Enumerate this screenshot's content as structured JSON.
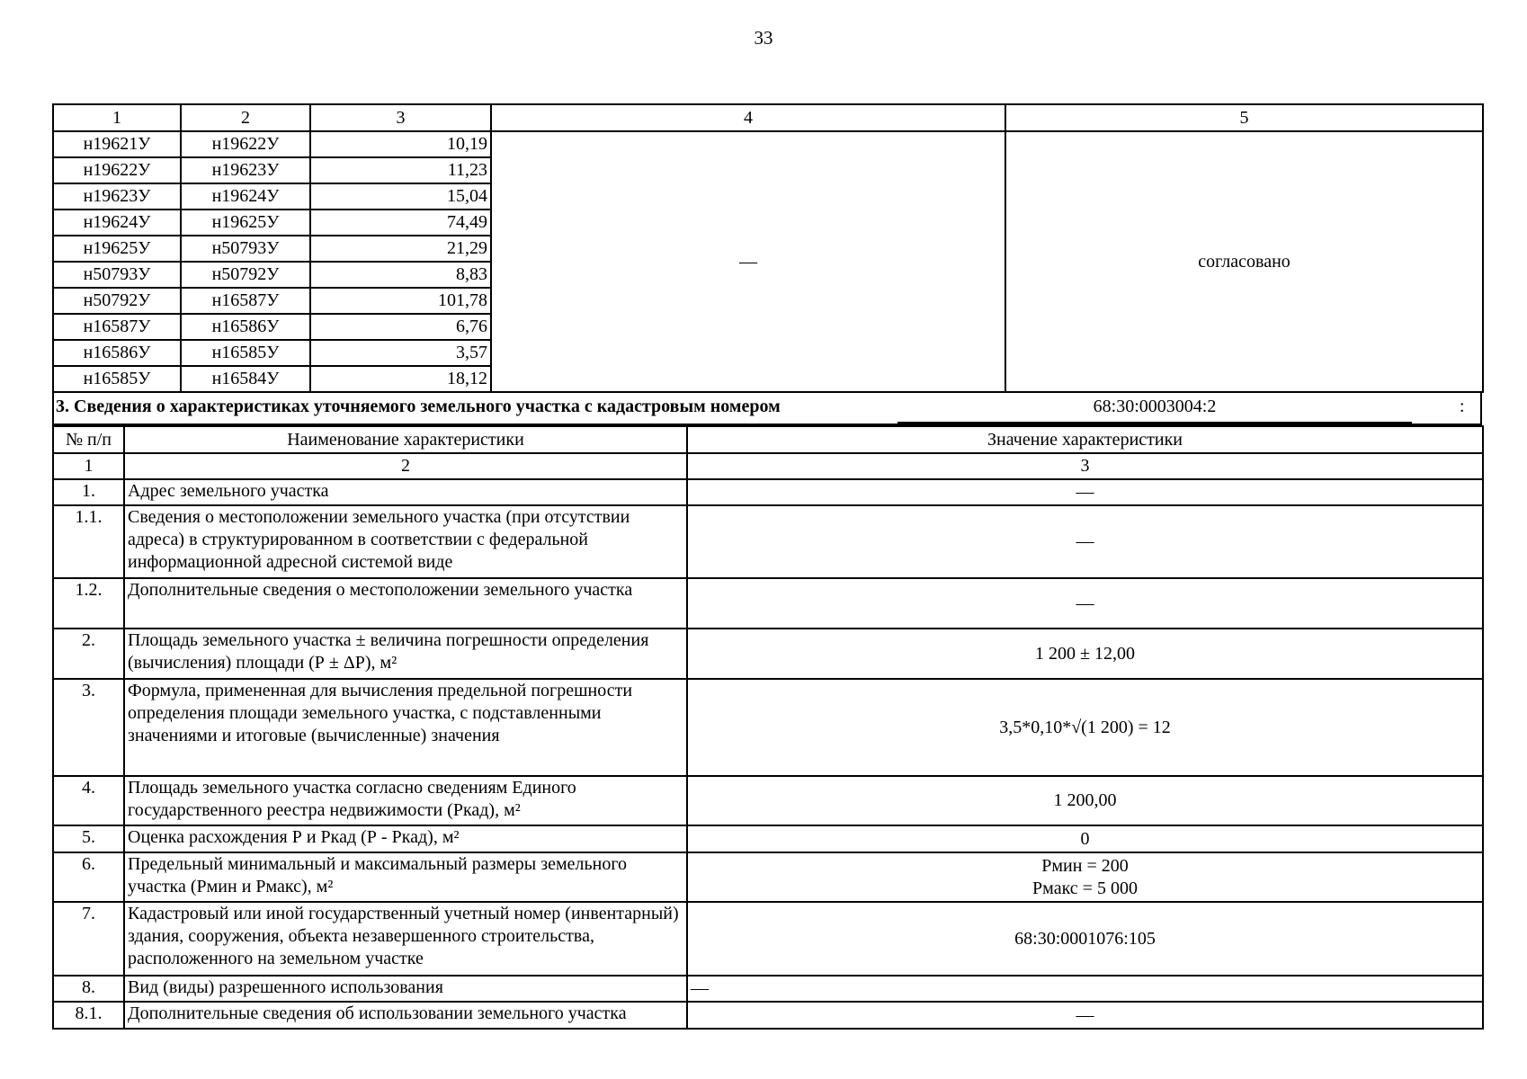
{
  "page_number": "33",
  "boundary_table": {
    "headers": [
      "1",
      "2",
      "3",
      "4",
      "5"
    ],
    "rows": [
      [
        "н19621У",
        "н19622У",
        "10,19"
      ],
      [
        "н19622У",
        "н19623У",
        "11,23"
      ],
      [
        "н19623У",
        "н19624У",
        "15,04"
      ],
      [
        "н19624У",
        "н19625У",
        "74,49"
      ],
      [
        "н19625У",
        "н50793У",
        "21,29"
      ],
      [
        "н50793У",
        "н50792У",
        "8,83"
      ],
      [
        "н50792У",
        "н16587У",
        "101,78"
      ],
      [
        "н16587У",
        "н16586У",
        "6,76"
      ],
      [
        "н16586У",
        "н16585У",
        "3,57"
      ],
      [
        "н16585У",
        "н16584У",
        "18,12"
      ]
    ],
    "col4_value": "—",
    "col5_value": "согласовано"
  },
  "section3": {
    "title": "3. Сведения о характеристиках уточняемого земельного участка с кадастровым номером",
    "cadastral_number": "68:30:0003004:2",
    "colon": ":"
  },
  "characteristics_table": {
    "headers": [
      "№ п/п",
      "Наименование характеристики",
      "Значение характеристики"
    ],
    "index_row": [
      "1",
      "2",
      "3"
    ],
    "rows": [
      {
        "num": "1.",
        "name": "Адрес земельного участка",
        "value": "—"
      },
      {
        "num": "1.1.",
        "name": "Сведения о местоположении земельного участка (при отсутствии адреса) в структурированном в соответствии с федеральной информационной адресной системой виде",
        "value": "—"
      },
      {
        "num": "1.2.",
        "name": "Дополнительные сведения о местоположении земельного участка",
        "value": "—"
      },
      {
        "num": "2.",
        "name": "Площадь земельного участка ± величина погрешности определения (вычисления) площади (Р ± ΔР), м²",
        "value": "1 200 ± 12,00"
      },
      {
        "num": "3.",
        "name": "Формула, примененная для вычисления предельной погрешности определения площади земельного участка, с подставленными значениями и итоговые (вычисленные) значения",
        "value": "3,5*0,10*√(1 200) = 12"
      },
      {
        "num": "4.",
        "name": "Площадь земельного участка согласно сведениям Единого государственного реестра недвижимости (Ркад), м²",
        "value": "1 200,00"
      },
      {
        "num": "5.",
        "name": "Оценка расхождения Р и Ркад (Р - Ркад), м²",
        "value": "0"
      },
      {
        "num": "6.",
        "name": "Предельный минимальный и максимальный размеры земельного участка (Рмин и Рмакс), м²",
        "value": "Рмин = 200",
        "value2": "Рмакс = 5 000"
      },
      {
        "num": "7.",
        "name": "Кадастровый или иной государственный учетный номер (инвентарный) здания, сооружения, объекта незавершенного строительства, расположенного на земельном участке",
        "value": "68:30:0001076:105"
      },
      {
        "num": "8.",
        "name": "Вид (виды) разрешенного использования",
        "value": "—"
      },
      {
        "num": "8.1.",
        "name": "Дополнительные сведения об использовании земельного участка",
        "value": "—"
      }
    ]
  }
}
